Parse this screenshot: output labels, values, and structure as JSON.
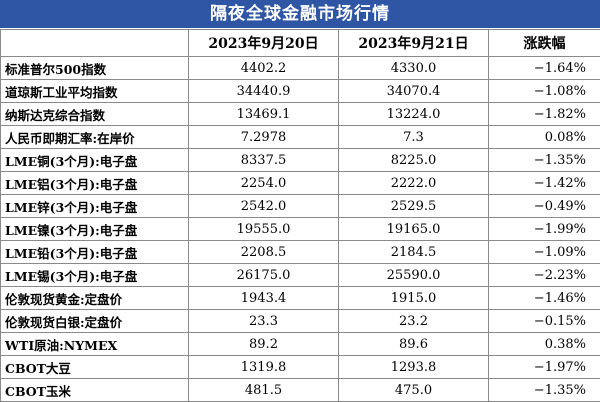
{
  "title": "隔夜全球金融市场行情",
  "headers": [
    "",
    "2023年9月20日",
    "2023年9月21日",
    "涨跌幅"
  ],
  "rows": [
    {
      "name": "标准普尔500指数",
      "d1": "4402.2",
      "d2": "4330.0",
      "chg": "−1.64%"
    },
    {
      "name": "道琼斯工业平均指数",
      "d1": "34440.9",
      "d2": "34070.4",
      "chg": "−1.08%"
    },
    {
      "name": "纳斯达克综合指数",
      "d1": "13469.1",
      "d2": "13224.0",
      "chg": "−1.82%"
    },
    {
      "name": "人民币即期汇率:在岸价",
      "d1": "7.2978",
      "d2": "7.3",
      "chg": "0.08%"
    },
    {
      "name": "LME铜(3个月):电子盘",
      "d1": "8337.5",
      "d2": "8225.0",
      "chg": "−1.35%"
    },
    {
      "name": "LME铝(3个月):电子盘",
      "d1": "2254.0",
      "d2": "2222.0",
      "chg": "−1.42%"
    },
    {
      "name": "LME锌(3个月):电子盘",
      "d1": "2542.0",
      "d2": "2529.5",
      "chg": "−0.49%"
    },
    {
      "name": "LME镍(3个月):电子盘",
      "d1": "19555.0",
      "d2": "19165.0",
      "chg": "−1.99%"
    },
    {
      "name": "LME铅(3个月):电子盘",
      "d1": "2208.5",
      "d2": "2184.5",
      "chg": "−1.09%"
    },
    {
      "name": "LME锡(3个月):电子盘",
      "d1": "26175.0",
      "d2": "25590.0",
      "chg": "−2.23%"
    },
    {
      "name": "伦敦现货黄金:定盘价",
      "d1": "1943.4",
      "d2": "1915.0",
      "chg": "−1.46%"
    },
    {
      "name": "伦敦现货白银:定盘价",
      "d1": "23.3",
      "d2": "23.2",
      "chg": "−0.15%"
    },
    {
      "name": "WTI原油:NYMEX",
      "d1": "89.2",
      "d2": "89.6",
      "chg": "0.38%"
    },
    {
      "name": "CBOT大豆",
      "d1": "1319.8",
      "d2": "1293.8",
      "chg": "−1.97%"
    },
    {
      "name": "CBOT玉米",
      "d1": "481.5",
      "d2": "475.0",
      "chg": "−1.35%"
    }
  ]
}
